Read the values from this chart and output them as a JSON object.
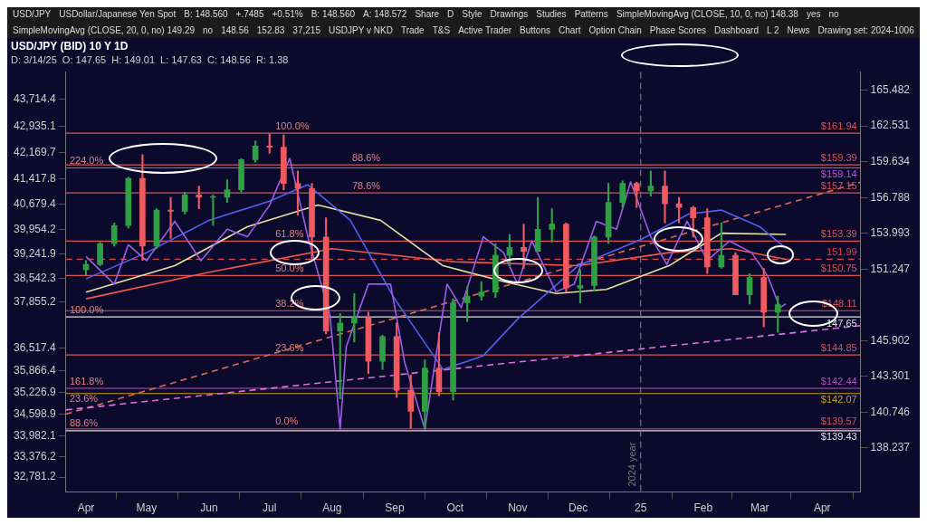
{
  "chart_data": {
    "type": "candlestick",
    "title": "USD/JPY (BID) 10 Y 1D",
    "subtitle": "D: 3/14/25  O: 147.65  H: 149.01  L: 147.63  C: 148.56  R: 1.38",
    "xlim": [
      "2024-03-22",
      "2025-04-20"
    ],
    "xticks": [
      {
        "value": "2024-04-01",
        "label": "Apr"
      },
      {
        "value": "2024-05-01",
        "label": "May"
      },
      {
        "value": "2024-06-01",
        "label": "Jun"
      },
      {
        "value": "2024-07-01",
        "label": "Jul"
      },
      {
        "value": "2024-08-01",
        "label": "Aug"
      },
      {
        "value": "2024-09-01",
        "label": "Sep"
      },
      {
        "value": "2024-10-01",
        "label": "Oct"
      },
      {
        "value": "2024-11-01",
        "label": "Nov"
      },
      {
        "value": "2024-12-01",
        "label": "Dec"
      },
      {
        "value": "2025-01-01",
        "label": "25"
      },
      {
        "value": "2025-02-01",
        "label": "Feb"
      },
      {
        "value": "2025-03-01",
        "label": "Mar"
      },
      {
        "value": "2025-04-01",
        "label": "Apr"
      }
    ],
    "ylim": [
      135.2,
      167.0
    ],
    "yticks": [
      138.237,
      140.746,
      143.301,
      145.902,
      151.247,
      153.993,
      156.788,
      159.634,
      162.531,
      165.482
    ],
    "log": "y",
    "y2lim": [
      32350,
      44510
    ],
    "y2ticks": [
      {
        "value": 32781.2,
        "label": "32,781.2"
      },
      {
        "value": 33376.2,
        "label": "33,376.2"
      },
      {
        "value": 33982.1,
        "label": "33,982.1"
      },
      {
        "value": 34598.9,
        "label": "34,598.9"
      },
      {
        "value": 35226.9,
        "label": "35,226.9"
      },
      {
        "value": 35866.4,
        "label": "35,866.4"
      },
      {
        "value": 36517.4,
        "label": "36,517.4"
      },
      {
        "value": 37855.2,
        "label": "37,855.2"
      },
      {
        "value": 38542.3,
        "label": "38,542.3"
      },
      {
        "value": 39241.9,
        "label": "39,241.9"
      },
      {
        "value": 39954.2,
        "label": "39,954.2"
      },
      {
        "value": 40679.4,
        "label": "40,679.4"
      },
      {
        "value": 41417.8,
        "label": "41,417.8"
      },
      {
        "value": 42169.7,
        "label": "42,169.7"
      },
      {
        "value": 42935.1,
        "label": "42,935.1"
      },
      {
        "value": 43714.4,
        "label": "43,714.4"
      }
    ],
    "series": [
      {
        "x": [
          "2024-04-01",
          "2024-04-08",
          "2024-04-15",
          "2024-04-22",
          "2024-04-29",
          "2024-05-06",
          "2024-05-13",
          "2024-05-20",
          "2024-05-27",
          "2024-06-03",
          "2024-06-10",
          "2024-06-17",
          "2024-06-24",
          "2024-07-01",
          "2024-07-08",
          "2024-07-15",
          "2024-07-22",
          "2024-07-29",
          "2024-08-05",
          "2024-08-12",
          "2024-08-19",
          "2024-08-26",
          "2024-09-02",
          "2024-09-09",
          "2024-09-16",
          "2024-09-23",
          "2024-09-30",
          "2024-10-07",
          "2024-10-14",
          "2024-10-21",
          "2024-10-28",
          "2024-11-04",
          "2024-11-11",
          "2024-11-18",
          "2024-11-25",
          "2024-12-02",
          "2024-12-09",
          "2024-12-16",
          "2024-12-23",
          "2024-12-30",
          "2025-01-06",
          "2025-01-13",
          "2025-01-20",
          "2025-01-27",
          "2025-02-03",
          "2025-02-10",
          "2025-02-17",
          "2025-02-24",
          "2025-03-03",
          "2025-03-10"
        ],
        "ohlc": [
          [
            151.2,
            151.9,
            150.8,
            151.6
          ],
          [
            151.6,
            153.3,
            151.5,
            153.2
          ],
          [
            153.2,
            154.8,
            153.0,
            154.6
          ],
          [
            154.6,
            158.4,
            154.4,
            158.3
          ],
          [
            158.3,
            160.2,
            151.9,
            153.0
          ],
          [
            153.0,
            155.9,
            152.8,
            155.8
          ],
          [
            155.8,
            156.8,
            153.6,
            155.7
          ],
          [
            155.7,
            157.2,
            155.5,
            157.0
          ],
          [
            157.0,
            157.7,
            155.9,
            156.8
          ],
          [
            156.8,
            157.0,
            154.6,
            156.8
          ],
          [
            156.8,
            158.2,
            156.4,
            157.4
          ],
          [
            157.4,
            159.9,
            157.2,
            159.8
          ],
          [
            159.8,
            161.3,
            159.6,
            160.9
          ],
          [
            160.9,
            161.9,
            160.3,
            160.8
          ],
          [
            160.8,
            161.8,
            157.4,
            157.9
          ],
          [
            157.9,
            158.9,
            155.4,
            157.5
          ],
          [
            157.5,
            157.9,
            151.9,
            153.7
          ],
          [
            153.7,
            155.2,
            146.4,
            146.6
          ],
          [
            146.6,
            147.9,
            141.7,
            147.2
          ],
          [
            147.2,
            149.4,
            145.8,
            147.6
          ],
          [
            147.6,
            148.0,
            143.5,
            144.4
          ],
          [
            144.4,
            146.3,
            143.8,
            146.2
          ],
          [
            146.2,
            147.2,
            141.8,
            142.3
          ],
          [
            142.3,
            143.4,
            139.6,
            140.8
          ],
          [
            140.8,
            144.5,
            139.6,
            143.9
          ],
          [
            143.9,
            146.5,
            141.9,
            142.2
          ],
          [
            142.2,
            149.0,
            141.6,
            148.7
          ],
          [
            148.7,
            149.9,
            147.3,
            149.2
          ],
          [
            149.2,
            150.3,
            148.9,
            149.5
          ],
          [
            149.5,
            153.2,
            149.1,
            152.3
          ],
          [
            152.3,
            153.9,
            151.5,
            152.9
          ],
          [
            152.9,
            154.7,
            151.3,
            152.6
          ],
          [
            152.6,
            156.8,
            152.6,
            154.3
          ],
          [
            154.3,
            155.9,
            153.3,
            154.7
          ],
          [
            154.7,
            154.8,
            149.5,
            149.8
          ],
          [
            149.8,
            151.2,
            148.7,
            150.0
          ],
          [
            150.0,
            153.8,
            149.6,
            153.7
          ],
          [
            153.7,
            157.9,
            153.2,
            156.4
          ],
          [
            156.4,
            158.1,
            156.0,
            157.9
          ],
          [
            157.9,
            158.0,
            156.0,
            157.3
          ],
          [
            157.3,
            158.9,
            156.9,
            157.7
          ],
          [
            157.7,
            158.9,
            154.8,
            156.3
          ],
          [
            156.3,
            156.8,
            154.8,
            156.0
          ],
          [
            156.0,
            156.1,
            153.7,
            155.2
          ],
          [
            155.2,
            155.9,
            150.9,
            151.4
          ],
          [
            151.4,
            154.8,
            151.3,
            152.3
          ],
          [
            152.3,
            152.5,
            149.3,
            149.3
          ],
          [
            149.3,
            150.9,
            148.6,
            150.6
          ],
          [
            150.6,
            151.3,
            146.9,
            148.0
          ],
          [
            148.0,
            149.2,
            146.5,
            148.56
          ]
        ]
      },
      {
        "type": "line",
        "axis": "y2",
        "color": "#9b5de5",
        "x": [
          "2024-04-01",
          "2024-04-15",
          "2024-04-22",
          "2024-05-01",
          "2024-05-15",
          "2024-05-28",
          "2024-06-10",
          "2024-06-20",
          "2024-07-01",
          "2024-07-11",
          "2024-07-20",
          "2024-07-31",
          "2024-08-05",
          "2024-08-08",
          "2024-08-19",
          "2024-08-30",
          "2024-09-06",
          "2024-09-16",
          "2024-09-27",
          "2024-10-04",
          "2024-10-15",
          "2024-10-25",
          "2024-11-01",
          "2024-11-08",
          "2024-11-20",
          "2024-11-29",
          "2024-12-10",
          "2024-12-20",
          "2024-12-27",
          "2025-01-06",
          "2025-01-14",
          "2025-01-24",
          "2025-02-03",
          "2025-02-14",
          "2025-02-25",
          "2025-03-05",
          "2025-03-11",
          "2025-03-14"
        ],
        "values": [
          39170,
          38370,
          39510,
          39050,
          40190,
          39050,
          39960,
          39740,
          40650,
          42010,
          39740,
          37460,
          34170,
          36550,
          38370,
          38370,
          36100,
          34170,
          38370,
          37690,
          39740,
          39280,
          38370,
          39620,
          38150,
          38370,
          40190,
          39960,
          41330,
          39740,
          38940,
          40190,
          39050,
          39620,
          39280,
          38600,
          37690,
          37800
        ]
      },
      {
        "type": "line",
        "color": "#5060f0",
        "x": [
          "2024-04-01",
          "2024-05-01",
          "2024-06-01",
          "2024-07-01",
          "2024-07-20",
          "2024-08-10",
          "2024-09-01",
          "2024-09-25",
          "2024-10-15",
          "2024-11-01",
          "2024-12-01",
          "2025-01-01",
          "2025-01-25",
          "2025-02-10",
          "2025-03-01",
          "2025-03-14"
        ],
        "values": [
          150.5,
          152.5,
          155.0,
          156.5,
          157.8,
          155.0,
          149.0,
          143.8,
          144.8,
          147.5,
          151.5,
          153.5,
          155.5,
          155.8,
          154.5,
          152.83
        ]
      },
      {
        "type": "line",
        "color": "#e8e0a0",
        "x": [
          "2024-04-01",
          "2024-05-15",
          "2024-06-20",
          "2024-07-25",
          "2024-08-25",
          "2024-09-25",
          "2024-10-25",
          "2024-11-20",
          "2024-12-15",
          "2025-01-15",
          "2025-02-10",
          "2025-03-14"
        ],
        "values": [
          149.5,
          151.5,
          154.5,
          156.2,
          155.0,
          151.5,
          150.3,
          149.4,
          149.7,
          151.5,
          154.0,
          153.9
        ]
      },
      {
        "type": "line",
        "color": "#f0584a",
        "x": [
          "2024-04-01",
          "2024-06-01",
          "2024-08-01",
          "2024-10-01",
          "2024-12-01",
          "2025-01-15",
          "2025-02-15",
          "2025-03-14"
        ],
        "values": [
          149.0,
          151.0,
          152.8,
          151.8,
          151.5,
          152.5,
          152.8,
          151.99
        ]
      },
      {
        "type": "line",
        "color": "#e070e0",
        "line_style": "dashed",
        "x": [
          "2024-03-22",
          "2025-04-20"
        ],
        "values": [
          140.9,
          147.0
        ]
      },
      {
        "type": "line",
        "color": "#d96a50",
        "line_style": "dashed",
        "x": [
          "2024-03-22",
          "2025-04-20"
        ],
        "values": [
          140.6,
          158.0
        ]
      }
    ],
    "ref_lines": [
      {
        "axis": "y",
        "value": 161.94,
        "label": "$161.94",
        "color": "#d9534f"
      },
      {
        "axis": "y",
        "value": 159.39,
        "label": "$159.39",
        "color": "#d9534f"
      },
      {
        "axis": "y",
        "value": 159.14,
        "label": "$159.14",
        "color": "#c050d0"
      },
      {
        "axis": "y",
        "value": 157.15,
        "label": "$157.15",
        "color": "#d9534f"
      },
      {
        "axis": "y",
        "value": 153.39,
        "label": "$153.39",
        "color": "#d9534f"
      },
      {
        "axis": "y",
        "value": 151.99,
        "label": "151.99",
        "color": "#e0404a",
        "line_style": "dashed"
      },
      {
        "axis": "y",
        "value": 150.75,
        "label": "$150.75",
        "color": "#d9534f"
      },
      {
        "axis": "y",
        "value": 148.11,
        "label": "$148.11",
        "color": "#d9534f"
      },
      {
        "axis": "y",
        "value": 147.65,
        "label": "147.65",
        "color": "#e0e0e0"
      },
      {
        "axis": "y",
        "value": 144.85,
        "label": "$144.85",
        "color": "#d9534f"
      },
      {
        "axis": "y",
        "value": 142.44,
        "label": "$142.44",
        "color": "#b050c0"
      },
      {
        "axis": "y",
        "value": 142.07,
        "label": "$142.07",
        "color": "#c8a020"
      },
      {
        "axis": "y",
        "value": 139.57,
        "label": "$139.57",
        "color": "#d9534f"
      },
      {
        "axis": "y",
        "value": 139.43,
        "label": "$139.43",
        "color": "#e0e0e0"
      },
      {
        "axis": "x",
        "value": "2025-01-01",
        "label": "2024 year",
        "color": "#777777",
        "line_style": "dashed"
      }
    ],
    "annotations": [
      {
        "text": "100.0%",
        "x": "2024-07-03",
        "y": 161.94
      },
      {
        "text": "88.6%",
        "x": "2024-08-10",
        "y": 159.39
      },
      {
        "text": "78.6%",
        "x": "2024-08-10",
        "y": 157.15
      },
      {
        "text": "61.8%",
        "x": "2024-07-03",
        "y": 153.39
      },
      {
        "text": "50.0%",
        "x": "2024-07-03",
        "y": 150.75
      },
      {
        "text": "38.2%",
        "x": "2024-07-03",
        "y": 148.11
      },
      {
        "text": "23.6%",
        "x": "2024-07-03",
        "y": 144.85
      },
      {
        "text": "0.0%",
        "x": "2024-07-03",
        "y": 139.57
      },
      {
        "text": "224.0%",
        "x": "2024-03-23",
        "y": 159.14
      },
      {
        "text": "100.0%",
        "x": "2024-03-23",
        "y": 147.65
      },
      {
        "text": "161.8%",
        "x": "2024-03-23",
        "y": 142.44
      },
      {
        "text": "23.6%",
        "x": "2024-03-23",
        "y": 142.07
      },
      {
        "text": "88.6%",
        "x": "2024-03-23",
        "y": 139.43
      },
      "USD/JPY",
      "USDollar/Japanese Yen Spot",
      "B: 148.560",
      "+.7485",
      "+0.51%",
      "B: 148.560",
      "A: 148.572",
      "Share",
      "D",
      "Style",
      "Drawings",
      "Studies",
      "Patterns",
      "SimpleMovingAvg (CLOSE, 10, 0, no) 148.38",
      "yes",
      "no",
      "SimpleMovingAvg (CLOSE, 20, 0, no) 149.29",
      "no",
      "148.56",
      "152.83",
      "37,215",
      "USDJPY v NKD",
      "Trade",
      "T&S",
      "Active Trader",
      "Buttons",
      "Chart",
      "Option Chain",
      "Phase Scores",
      "Dashboard",
      "L 2",
      "News",
      "Drawing set: 2024-1006"
    ]
  }
}
